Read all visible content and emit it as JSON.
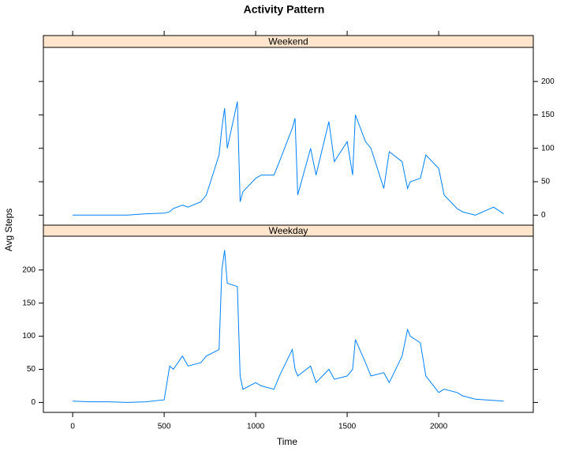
{
  "chart_data": {
    "type": "line",
    "title": "Activity Pattern",
    "xlabel": "Time",
    "ylabel": "Avg Steps",
    "x": [
      0,
      100,
      200,
      300,
      400,
      500,
      530,
      550,
      600,
      630,
      700,
      730,
      800,
      815,
      830,
      845,
      900,
      915,
      930,
      1000,
      1030,
      1100,
      1130,
      1200,
      1215,
      1230,
      1300,
      1330,
      1400,
      1430,
      1500,
      1530,
      1545,
      1600,
      1630,
      1700,
      1730,
      1800,
      1830,
      1845,
      1900,
      1930,
      2000,
      2030,
      2100,
      2130,
      2200,
      2300,
      2355
    ],
    "series": [
      {
        "name": "Weekend",
        "color": "#0080ff",
        "values": [
          0,
          0,
          0,
          0,
          2,
          3,
          5,
          10,
          15,
          12,
          20,
          30,
          90,
          130,
          160,
          100,
          170,
          20,
          35,
          55,
          60,
          60,
          80,
          130,
          145,
          30,
          100,
          60,
          140,
          80,
          110,
          60,
          150,
          110,
          100,
          40,
          95,
          80,
          40,
          50,
          55,
          90,
          70,
          30,
          10,
          5,
          0,
          12,
          2
        ]
      },
      {
        "name": "Weekday",
        "color": "#0080ff",
        "values": [
          2,
          1,
          1,
          0,
          1,
          4,
          55,
          50,
          70,
          55,
          60,
          70,
          80,
          200,
          230,
          180,
          175,
          40,
          20,
          30,
          25,
          20,
          40,
          80,
          50,
          40,
          55,
          30,
          50,
          35,
          40,
          50,
          95,
          60,
          40,
          45,
          30,
          70,
          110,
          100,
          90,
          40,
          15,
          20,
          15,
          10,
          5,
          3,
          2
        ]
      }
    ],
    "xlim": [
      -160,
      2517
    ],
    "ylim": [
      -15,
      251
    ],
    "xticks": [
      0,
      500,
      1000,
      1500,
      2000
    ],
    "yticks": [
      0,
      50,
      100,
      150,
      200
    ],
    "strip_color": "#ffe5cc"
  }
}
